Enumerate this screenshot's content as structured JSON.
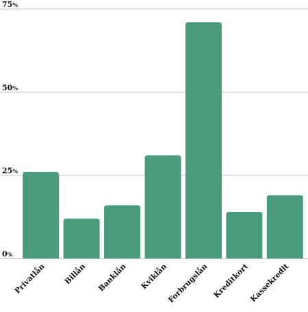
{
  "chart_data": {
    "type": "bar",
    "title": "",
    "xlabel": "",
    "ylabel": "",
    "categories": [
      "Privatlån",
      "Billån",
      "Banklån",
      "Kviklån",
      "Forbrugslån",
      "Kreditkort",
      "Kassekredit"
    ],
    "values": [
      26,
      12,
      16,
      31,
      71,
      14,
      19
    ],
    "ylim": [
      0,
      75
    ],
    "yticks": [
      0,
      25,
      50,
      75
    ],
    "ytick_labels": [
      "0",
      "25",
      "50",
      "75"
    ],
    "ytick_unit": "%",
    "grid": "horizontal",
    "legend": "none",
    "colors": {
      "bar": "#4a9a7c",
      "grid": "#c8c8c8"
    }
  }
}
